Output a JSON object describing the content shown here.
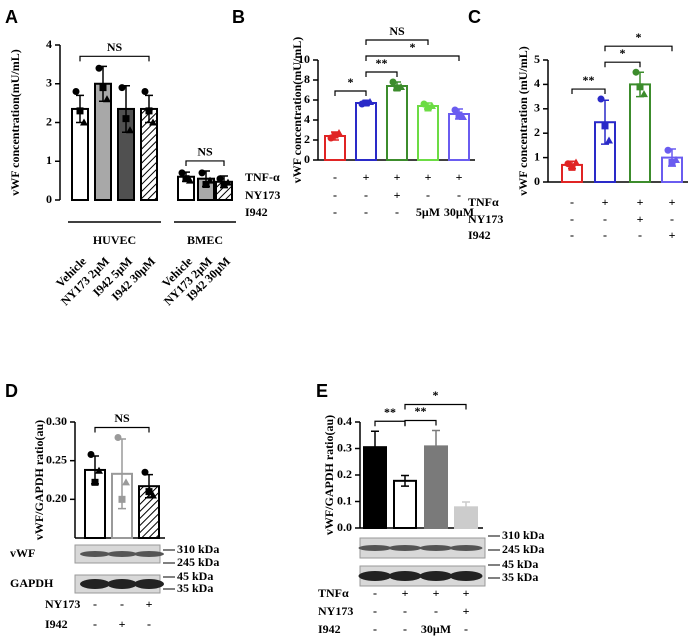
{
  "chart_data": [
    {
      "type": "bar",
      "panel": "A",
      "ylabel": "vWF concentration(mU/mL)",
      "ylim": [
        0,
        4
      ],
      "yticks": [
        0,
        1,
        2,
        3,
        4
      ],
      "categories": [
        "Vehicle",
        "NY173 2μM",
        "I942 5μM",
        "I942 30μM",
        "Vehicle",
        "NY173 2μM",
        "I942 30μM"
      ],
      "values": [
        2.35,
        3.0,
        2.35,
        2.35,
        0.6,
        0.55,
        0.47
      ],
      "errors": [
        0.35,
        0.45,
        0.6,
        0.35,
        0.12,
        0.2,
        0.15
      ],
      "points": [
        [
          2.8,
          2.3,
          2.0
        ],
        [
          3.4,
          2.9,
          2.6
        ],
        [
          2.9,
          2.1,
          1.8
        ],
        [
          2.8,
          2.3,
          2.0
        ],
        [
          0.7,
          0.55,
          0.5
        ],
        [
          0.7,
          0.4,
          0.5
        ],
        [
          0.55,
          0.4,
          0.45
        ]
      ],
      "fills": [
        "#ffffff",
        "#a8a8a8",
        "#505050",
        "hatch",
        "#ffffff",
        "#a8a8a8",
        "hatch"
      ],
      "edgecolors": [
        "#000000",
        "#000000",
        "#000000",
        "#000000",
        "#000000",
        "#000000",
        "#000000"
      ],
      "groups": [
        {
          "label": "HUVEC",
          "from": 0,
          "to": 3
        },
        {
          "label": "BMEC",
          "from": 4,
          "to": 6
        }
      ],
      "annotations": [
        {
          "text": "NS",
          "from": 0,
          "to": 3
        },
        {
          "text": "NS",
          "from": 4,
          "to": 6
        }
      ]
    },
    {
      "type": "bar",
      "panel": "B",
      "ylabel": "vWF concentration(mU/mL)",
      "ylim": [
        0,
        10
      ],
      "yticks": [
        0,
        2,
        4,
        6,
        8,
        10
      ],
      "values": [
        2.4,
        5.7,
        7.4,
        5.4,
        4.6
      ],
      "errors": [
        0.4,
        0.2,
        0.4,
        0.3,
        0.5
      ],
      "points": [
        [
          2.2,
          2.5,
          2.7
        ],
        [
          5.6,
          5.7,
          5.8
        ],
        [
          7.8,
          7.2,
          7.3
        ],
        [
          5.6,
          5.2,
          5.4
        ],
        [
          5.0,
          4.5,
          4.3
        ]
      ],
      "fills": [
        "#ffffff",
        "#ffffff",
        "#ffffff",
        "#ffffff",
        "#ffffff"
      ],
      "edgecolors": [
        "#e02424",
        "#2a2ac8",
        "#3c8c2c",
        "#6cdc44",
        "#6a5cf0"
      ],
      "treatments": [
        {
          "label": "TNF-α",
          "values": [
            "-",
            "+",
            "+",
            "+",
            "+"
          ]
        },
        {
          "label": "NY173",
          "values": [
            "-",
            "-",
            "+",
            "-",
            "-"
          ]
        },
        {
          "label": "I942",
          "values": [
            "-",
            "-",
            "-",
            "5μM",
            "30μM"
          ]
        }
      ],
      "annotations": [
        {
          "text": "*",
          "from": 0,
          "to": 1
        },
        {
          "text": "**",
          "from": 1,
          "to": 2
        },
        {
          "text": "*",
          "from": 1,
          "to": 4
        },
        {
          "text": "NS",
          "from": 1,
          "to": 3
        }
      ]
    },
    {
      "type": "bar",
      "panel": "C",
      "ylabel": "vWF concentration (mU/mL)",
      "ylim": [
        0,
        5
      ],
      "yticks": [
        0,
        1,
        2,
        3,
        4,
        5
      ],
      "values": [
        0.7,
        2.45,
        4.0,
        1.0
      ],
      "errors": [
        0.15,
        0.9,
        0.5,
        0.35
      ],
      "points": [
        [
          0.75,
          0.6,
          0.8
        ],
        [
          3.4,
          2.3,
          1.7
        ],
        [
          4.5,
          3.9,
          3.6
        ],
        [
          1.3,
          0.8,
          0.9
        ]
      ],
      "fills": [
        "#ffffff",
        "#ffffff",
        "#ffffff",
        "#ffffff"
      ],
      "edgecolors": [
        "#e02424",
        "#2a2ac8",
        "#3c8c2c",
        "#6a5cf0"
      ],
      "treatments": [
        {
          "label": "TNFα",
          "values": [
            "-",
            "+",
            "+",
            "+"
          ]
        },
        {
          "label": "NY173",
          "values": [
            "-",
            "-",
            "+",
            "-"
          ]
        },
        {
          "label": "I942",
          "values": [
            "-",
            "-",
            "-",
            "+"
          ]
        }
      ],
      "annotations": [
        {
          "text": "**",
          "from": 0,
          "to": 1
        },
        {
          "text": "*",
          "from": 1,
          "to": 2
        },
        {
          "text": "*",
          "from": 1,
          "to": 3
        }
      ]
    },
    {
      "type": "bar",
      "panel": "D",
      "ylabel": "vWF/GAPDH ratio(au)",
      "ylim": [
        0.15,
        0.3
      ],
      "yticks": [
        {
          "value": 0.2,
          "label": "0.20"
        },
        {
          "value": 0.25,
          "label": "0.25"
        },
        {
          "value": 0.3,
          "label": "0.30"
        }
      ],
      "values": [
        0.238,
        0.233,
        0.217
      ],
      "errors": [
        0.018,
        0.045,
        0.015
      ],
      "points": [
        [
          0.258,
          0.222,
          0.237
        ],
        [
          0.28,
          0.2,
          0.222
        ],
        [
          0.235,
          0.21,
          0.205
        ]
      ],
      "fills": [
        "#ffffff",
        "#ffffff",
        "hatch"
      ],
      "edgecolors": [
        "#000000",
        "#9a9a9a",
        "#000000"
      ],
      "treatments": [
        {
          "label": "NY173",
          "values": [
            "-",
            "-",
            "+"
          ]
        },
        {
          "label": "I942",
          "values": [
            "-",
            "+",
            "-"
          ]
        }
      ],
      "annotations": [
        {
          "text": "NS",
          "from": 0,
          "to": 2
        }
      ],
      "blots": [
        "vWF",
        "GAPDH"
      ],
      "markers": [
        "310 kDa",
        "245 kDa",
        "45 kDa",
        "35 kDa"
      ]
    },
    {
      "type": "bar",
      "panel": "E",
      "ylabel": "vWF/GAPDH ratio(au)",
      "ylim": [
        0,
        0.4
      ],
      "yticks": [
        {
          "value": 0,
          "label": "0.0"
        },
        0.1,
        0.2,
        0.3,
        0.4
      ],
      "values": [
        0.305,
        0.178,
        0.308,
        0.078
      ],
      "errors": [
        0.06,
        0.02,
        0.06,
        0.02
      ],
      "fills": [
        "#000000",
        "#ffffff",
        "#7a7a7a",
        "#cccccc"
      ],
      "edgecolors": [
        "#000000",
        "#000000",
        "#7a7a7a",
        "#cccccc"
      ],
      "treatments": [
        {
          "label": "TNFα",
          "values": [
            "-",
            "+",
            "+",
            "+"
          ]
        },
        {
          "label": "NY173",
          "values": [
            "-",
            "-",
            "-",
            "+"
          ]
        },
        {
          "label": "I942",
          "values": [
            "-",
            "-",
            "30μM",
            "-"
          ]
        }
      ],
      "annotations": [
        {
          "text": "**",
          "from": 0,
          "to": 1
        },
        {
          "text": "**",
          "from": 1,
          "to": 2
        },
        {
          "text": "*",
          "from": 1,
          "to": 3
        }
      ],
      "markers": [
        "310 kDa",
        "245 kDa",
        "45 kDa",
        "35 kDa"
      ]
    }
  ]
}
